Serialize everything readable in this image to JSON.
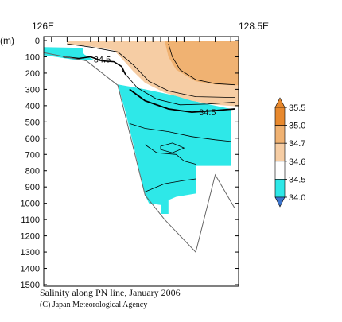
{
  "chart_data": {
    "type": "section",
    "title": "",
    "x_label_left": "126E",
    "x_label_right": "128.5E",
    "y_unit": "(m)",
    "y_ticks": [
      0,
      100,
      200,
      300,
      400,
      500,
      600,
      700,
      800,
      900,
      1000,
      1100,
      1200,
      1300,
      1400,
      1500
    ],
    "y_range": [
      0,
      1500
    ],
    "x_range": [
      126.0,
      128.5
    ],
    "station_longitudes": [
      126.0,
      126.1,
      126.3,
      126.6,
      126.7,
      126.8,
      126.9,
      127.0,
      127.1,
      127.2,
      127.3,
      127.4,
      127.5,
      127.6,
      127.7,
      127.8,
      128.0,
      128.2,
      128.4
    ],
    "colorbar": {
      "ticks": [
        34.0,
        34.5,
        34.6,
        34.7,
        35.0,
        35.5
      ],
      "colors": [
        "#3b73cc",
        "#2ee8e8",
        "#ffffff",
        "#f6cda4",
        "#f0b272",
        "#e8892e"
      ]
    },
    "contour_labels": [
      {
        "text": "34.5",
        "x": 126.75,
        "y": 130
      },
      {
        "text": "34.5",
        "x": 128.1,
        "y": 455
      }
    ],
    "bottom_profile": [
      {
        "x": 126.0,
        "y": 75
      },
      {
        "x": 126.55,
        "y": 125
      },
      {
        "x": 126.95,
        "y": 275
      },
      {
        "x": 127.3,
        "y": 950
      },
      {
        "x": 127.55,
        "y": 1100
      },
      {
        "x": 127.95,
        "y": 1300
      },
      {
        "x": 128.2,
        "y": 825
      },
      {
        "x": 128.45,
        "y": 1030
      }
    ],
    "caption_title": "Salinity along PN line, January 2006",
    "caption_credit": "(C) Japan Meteorological Agency"
  }
}
